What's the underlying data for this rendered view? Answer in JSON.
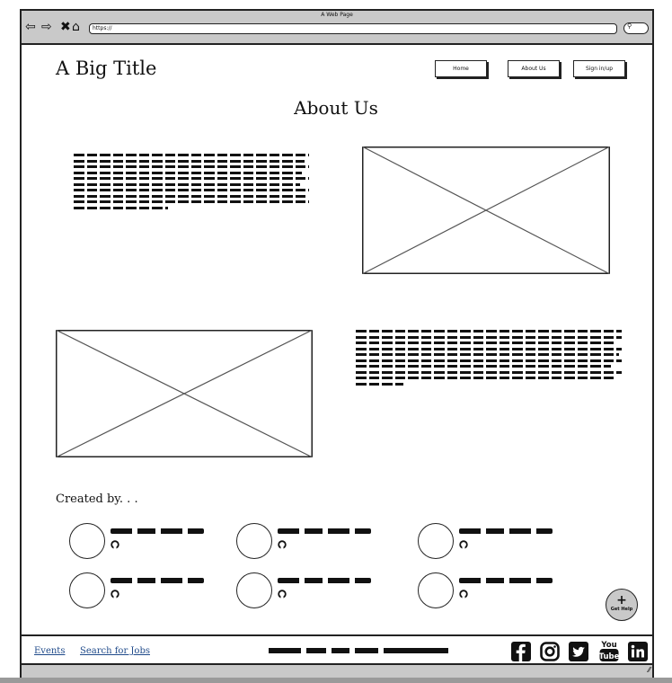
{
  "browser": {
    "window_title": "A Web Page",
    "address": "https://",
    "icons": [
      "back-icon",
      "forward-icon",
      "close-icon",
      "home-icon",
      "search-icon"
    ]
  },
  "header": {
    "title": "A Big Title",
    "nav": [
      "Home",
      "About Us",
      "Sign in/up"
    ]
  },
  "main": {
    "heading": "About Us"
  },
  "team": {
    "label": "Created by. . .",
    "member_icon": "github-icon"
  },
  "help": {
    "label": "Get Help",
    "icon": "plus-icon"
  },
  "footer": {
    "links": [
      "Events",
      "Search for Jobs"
    ],
    "social": [
      "facebook-icon",
      "instagram-icon",
      "twitter-icon",
      "youtube-icon",
      "linkedin-icon"
    ]
  }
}
